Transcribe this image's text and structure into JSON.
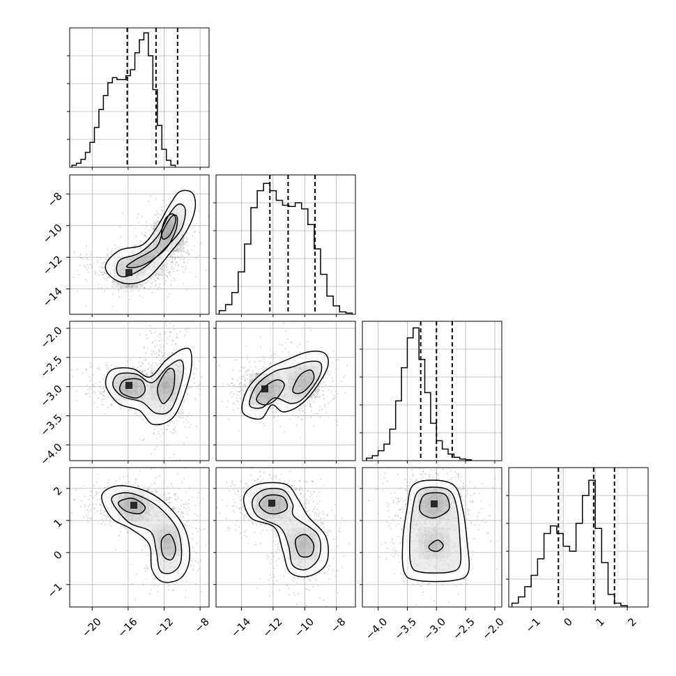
{
  "colors": {
    "line": "#000000",
    "grid": "#b0b0b0",
    "scatter": "#9a9a9a",
    "background": "#ffffff"
  },
  "chart_data": {
    "type": "corner",
    "grid": true,
    "parameters": [
      {
        "range": [
          -22.5,
          -7
        ],
        "ticks": [
          -20,
          -16,
          -12,
          -8
        ],
        "tick_labels": [
          "−20",
          "−16",
          "−12",
          "−8"
        ]
      },
      {
        "range": [
          -15.6,
          -6.8
        ],
        "ticks": [
          -14,
          -12,
          -10,
          -8
        ],
        "tick_labels": [
          "−14",
          "−12",
          "−10",
          "−8"
        ]
      },
      {
        "range": [
          -4.27,
          -1.88
        ],
        "ticks": [
          -4.0,
          -3.5,
          -3.0,
          -2.5,
          -2.0
        ],
        "tick_labels": [
          "−4.0",
          "−3.5",
          "−3.0",
          "−2.5",
          "−2.0"
        ]
      },
      {
        "range": [
          -1.7,
          2.65
        ],
        "ticks": [
          -1,
          0,
          1,
          2
        ],
        "tick_labels": [
          "−1",
          "0",
          "1",
          "2"
        ]
      }
    ],
    "histograms": [
      {
        "bins_start": -22.25,
        "bin_width": 0.5,
        "counts": [
          2,
          4,
          8,
          15,
          25,
          40,
          58,
          72,
          85,
          90,
          88,
          88,
          92,
          98,
          115,
          128,
          135,
          112,
          78,
          42,
          18,
          7,
          2
        ],
        "quantiles": [
          -16.1,
          -12.9,
          -10.5
        ],
        "ylim": [
          0,
          140
        ]
      },
      {
        "bins_start": -15.4,
        "bin_width": 0.4,
        "counts": [
          3,
          8,
          18,
          35,
          58,
          88,
          102,
          108,
          102,
          94,
          90,
          89,
          92,
          87,
          74,
          54,
          33,
          15,
          7,
          2,
          1
        ],
        "quantiles": [
          -12.2,
          -11.05,
          -9.35
        ],
        "ylim": [
          0,
          115
        ]
      },
      {
        "bins_start": -4.2,
        "bin_width": 0.1,
        "counts": [
          3,
          6,
          12,
          20,
          38,
          72,
          112,
          148,
          160,
          122,
          82,
          45,
          24,
          14,
          8,
          4,
          2,
          1
        ],
        "quantiles": [
          -3.27,
          -3.0,
          -2.73
        ],
        "ylim": [
          0,
          168
        ]
      },
      {
        "bins_start": -1.6,
        "bin_width": 0.2,
        "counts": [
          3,
          8,
          16,
          25,
          38,
          58,
          64,
          58,
          48,
          44,
          66,
          88,
          100,
          62,
          35,
          10,
          3,
          1
        ],
        "quantiles": [
          -0.15,
          0.95,
          1.6
        ],
        "ylim": [
          0,
          110
        ]
      }
    ],
    "joint_modes": [
      {
        "x": [
          -15.0,
          -11.0
        ],
        "y": [
          -12.0,
          -9.8
        ]
      },
      {
        "x": [
          -15.0,
          -11.0
        ],
        "y": [
          -3.0,
          -3.0
        ]
      },
      {
        "x": [
          -15.0,
          -11.0
        ],
        "y": [
          1.45,
          0.2
        ]
      },
      {
        "x": [
          -11.8,
          -9.9
        ],
        "y": [
          -3.0,
          -3.0
        ]
      },
      {
        "x": [
          -11.8,
          -9.9
        ],
        "y": [
          1.45,
          0.2
        ]
      },
      {
        "x": [
          -3.0,
          -3.0
        ],
        "y": [
          1.45,
          0.2
        ]
      }
    ]
  }
}
